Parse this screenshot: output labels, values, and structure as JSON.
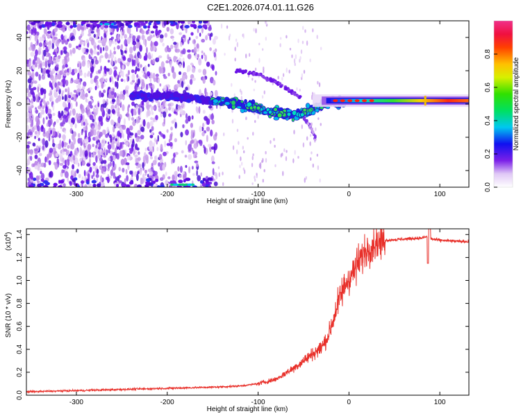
{
  "title": "C2E1.2026.074.01.11.G26",
  "chart_data": [
    {
      "type": "heatmap",
      "name": "spectrogram",
      "xlabel": "Height of straight line (km)",
      "ylabel": "Frequency (Hz)",
      "xlim": [
        -355,
        132
      ],
      "ylim": [
        -50,
        50
      ],
      "xticks": [
        -300,
        -200,
        -100,
        0,
        100
      ],
      "yticks": [
        -40,
        -20,
        0,
        20,
        40
      ],
      "colorbar": {
        "label": "Normalized spectral amplitude",
        "range": [
          0,
          1
        ],
        "ticks": [
          0.0,
          0.2,
          0.4,
          0.6,
          0.8
        ]
      },
      "features": [
        {
          "name": "main-signal-track",
          "points": [
            [
              -200,
              5
            ],
            [
              -150,
              2
            ],
            [
              -120,
              0
            ],
            [
              -90,
              -4
            ],
            [
              -60,
              -7
            ],
            [
              -40,
              -3
            ],
            [
              -20,
              1
            ],
            [
              0,
              1
            ],
            [
              30,
              1.5
            ],
            [
              80,
              2
            ],
            [
              132,
              2
            ]
          ]
        },
        {
          "name": "upper-branch",
          "points": [
            [
              -120,
              20
            ],
            [
              -100,
              18
            ],
            [
              -80,
              13
            ],
            [
              -65,
              8
            ],
            [
              -55,
              4
            ]
          ]
        },
        {
          "name": "lower-branch",
          "points": [
            [
              -50,
              -8
            ],
            [
              -42,
              -14
            ],
            [
              -38,
              -20
            ]
          ]
        }
      ]
    },
    {
      "type": "line",
      "name": "snr",
      "xlabel": "Height of straight line (km)",
      "ylabel": "SNR (10 * v/v)",
      "scale_label": "(x10",
      "scale_exponent": "4",
      "xlim": [
        -355,
        132
      ],
      "ylim": [
        0,
        1.45
      ],
      "xticks": [
        -300,
        -200,
        -100,
        0,
        100
      ],
      "yticks": [
        0.0,
        0.2,
        0.4,
        0.6,
        0.8,
        1.0,
        1.2,
        1.4
      ],
      "series": [
        {
          "name": "SNR",
          "color": "#e8302a",
          "x": [
            -355,
            -300,
            -250,
            -200,
            -150,
            -120,
            -100,
            -80,
            -60,
            -50,
            -40,
            -30,
            -25,
            -20,
            -15,
            -10,
            -5,
            0,
            5,
            10,
            15,
            20,
            30,
            40,
            60,
            80,
            85,
            88,
            92,
            100,
            120,
            132
          ],
          "y": [
            0.03,
            0.04,
            0.05,
            0.06,
            0.07,
            0.08,
            0.1,
            0.14,
            0.24,
            0.3,
            0.36,
            0.42,
            0.48,
            0.58,
            0.72,
            0.85,
            0.95,
            1.02,
            1.08,
            1.15,
            1.22,
            1.27,
            1.33,
            1.35,
            1.36,
            1.37,
            1.38,
            1.37,
            1.36,
            1.35,
            1.34,
            1.34
          ]
        }
      ]
    }
  ]
}
